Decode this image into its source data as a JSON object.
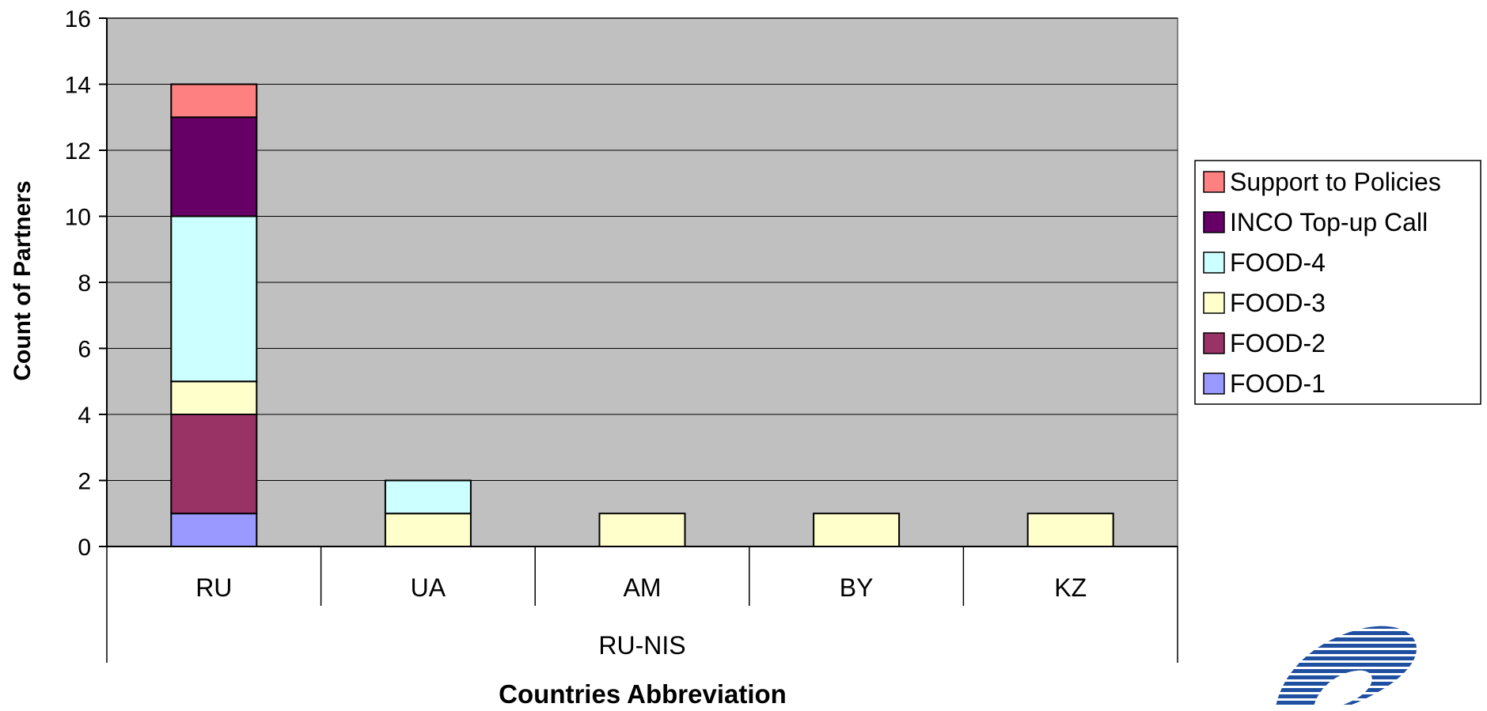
{
  "chart_data": {
    "type": "bar",
    "stacked": true,
    "categories": [
      "RU",
      "UA",
      "AM",
      "BY",
      "KZ"
    ],
    "category_group": "RU-NIS",
    "series": [
      {
        "name": "FOOD-1",
        "color": "#9999FF",
        "values": [
          1,
          0,
          0,
          0,
          0
        ]
      },
      {
        "name": "FOOD-2",
        "color": "#993366",
        "values": [
          3,
          0,
          0,
          0,
          0
        ]
      },
      {
        "name": "FOOD-3",
        "color": "#FFFFCC",
        "values": [
          1,
          1,
          1,
          1,
          1
        ]
      },
      {
        "name": "FOOD-4",
        "color": "#CCFFFF",
        "values": [
          5,
          1,
          0,
          0,
          0
        ]
      },
      {
        "name": "INCO Top-up Call",
        "color": "#660066",
        "values": [
          3,
          0,
          0,
          0,
          0
        ]
      },
      {
        "name": "Support to Policies",
        "color": "#FF8080",
        "values": [
          1,
          0,
          0,
          0,
          0
        ]
      }
    ],
    "legend_order": [
      "Support to Policies",
      "INCO Top-up Call",
      "FOOD-4",
      "FOOD-3",
      "FOOD-2",
      "FOOD-1"
    ],
    "xlabel": "Countries Abbreviation",
    "ylabel": "Count of Partners",
    "ylim": [
      0,
      16
    ],
    "yticks": [
      0,
      2,
      4,
      6,
      8,
      10,
      12,
      14,
      16
    ],
    "grid": true,
    "legend_position": "right",
    "plot_background": "#C0C0C0"
  },
  "logo": {
    "name": "fp6-logo-icon",
    "color": "#1F4FA0"
  }
}
